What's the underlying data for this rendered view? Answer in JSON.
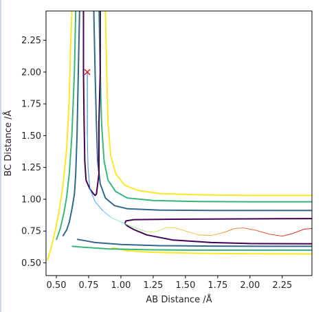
{
  "chart_data": {
    "type": "contour",
    "xlabel": "AB Distance /Å",
    "ylabel": "BC Distance /Å",
    "xlim": [
      0.42,
      2.48
    ],
    "ylim": [
      0.4,
      2.48
    ],
    "xticks": [
      "0.50",
      "0.75",
      "1.00",
      "1.25",
      "1.50",
      "1.75",
      "2.00",
      "2.25"
    ],
    "yticks": [
      "0.50",
      "0.75",
      "1.00",
      "1.25",
      "1.50",
      "1.75",
      "2.00",
      "2.25"
    ],
    "grid": false,
    "legend": "none",
    "contours": [
      {
        "color": "#fde725",
        "points": [
          [
            0.62,
            2.48
          ],
          [
            0.61,
            2.2
          ],
          [
            0.6,
            1.8
          ],
          [
            0.58,
            1.4
          ],
          [
            0.55,
            1.1
          ],
          [
            0.52,
            0.9
          ],
          [
            0.49,
            0.75
          ],
          [
            0.46,
            0.62
          ],
          [
            0.43,
            0.52
          ]
        ],
        "points2": [
          [
            0.88,
            2.48
          ],
          [
            0.89,
            2.0
          ],
          [
            0.9,
            1.6
          ],
          [
            0.92,
            1.35
          ],
          [
            0.96,
            1.2
          ],
          [
            1.03,
            1.11
          ],
          [
            1.13,
            1.07
          ],
          [
            1.3,
            1.045
          ],
          [
            1.6,
            1.035
          ],
          [
            2.0,
            1.03
          ],
          [
            2.48,
            1.03
          ]
        ],
        "points3": [
          [
            0.93,
            0.62
          ],
          [
            1.05,
            0.595
          ],
          [
            1.25,
            0.583
          ],
          [
            1.6,
            0.575
          ],
          [
            2.0,
            0.572
          ],
          [
            2.48,
            0.57
          ]
        ]
      },
      {
        "color": "#35b779",
        "points": [
          [
            0.65,
            2.48
          ],
          [
            0.64,
            2.0
          ],
          [
            0.62,
            1.5
          ],
          [
            0.6,
            1.2
          ],
          [
            0.58,
            1.02
          ],
          [
            0.56,
            0.9
          ],
          [
            0.53,
            0.77
          ],
          [
            0.5,
            0.68
          ]
        ],
        "points2": [
          [
            0.83,
            2.48
          ],
          [
            0.84,
            2.0
          ],
          [
            0.85,
            1.6
          ],
          [
            0.87,
            1.3
          ],
          [
            0.9,
            1.15
          ],
          [
            0.96,
            1.06
          ],
          [
            1.05,
            1.01
          ],
          [
            1.25,
            0.99
          ],
          [
            1.6,
            0.982
          ],
          [
            2.0,
            0.98
          ],
          [
            2.48,
            0.98
          ]
        ],
        "points3": [
          [
            0.62,
            0.63
          ],
          [
            0.75,
            0.62
          ],
          [
            0.9,
            0.61
          ],
          [
            1.2,
            0.603
          ],
          [
            1.6,
            0.6
          ],
          [
            2.0,
            0.6
          ],
          [
            2.48,
            0.6
          ]
        ]
      },
      {
        "color": "#31688e",
        "points": [
          [
            0.68,
            2.48
          ],
          [
            0.67,
            2.0
          ],
          [
            0.66,
            1.5
          ],
          [
            0.65,
            1.2
          ],
          [
            0.64,
            1.04
          ],
          [
            0.62,
            0.92
          ],
          [
            0.6,
            0.82
          ],
          [
            0.58,
            0.76
          ],
          [
            0.55,
            0.71
          ]
        ],
        "points2": [
          [
            0.79,
            2.48
          ],
          [
            0.8,
            2.0
          ],
          [
            0.81,
            1.6
          ],
          [
            0.82,
            1.3
          ],
          [
            0.84,
            1.12
          ],
          [
            0.88,
            1.01
          ],
          [
            0.95,
            0.95
          ],
          [
            1.05,
            0.925
          ],
          [
            1.3,
            0.915
          ],
          [
            1.7,
            0.912
          ],
          [
            2.48,
            0.912
          ]
        ],
        "points3": [
          [
            0.66,
            0.685
          ],
          [
            0.8,
            0.66
          ],
          [
            1.0,
            0.645
          ],
          [
            1.3,
            0.635
          ],
          [
            1.7,
            0.632
          ],
          [
            2.1,
            0.63
          ],
          [
            2.48,
            0.63
          ]
        ]
      },
      {
        "color": "#440154",
        "points": [
          [
            0.71,
            2.48
          ],
          [
            0.71,
            2.0
          ],
          [
            0.715,
            1.6
          ],
          [
            0.72,
            1.3
          ],
          [
            0.73,
            1.15
          ],
          [
            0.76,
            1.08
          ],
          [
            0.79,
            1.04
          ],
          [
            0.8,
            1.03
          ],
          [
            0.81,
            1.04
          ],
          [
            0.83,
            1.2
          ],
          [
            0.83,
            1.6
          ],
          [
            0.84,
            2.0
          ],
          [
            0.84,
            2.48
          ]
        ],
        "points2": [
          [
            2.48,
            0.848
          ],
          [
            2.2,
            0.847
          ],
          [
            1.8,
            0.845
          ],
          [
            1.4,
            0.843
          ],
          [
            1.1,
            0.84
          ],
          [
            1.04,
            0.83
          ],
          [
            1.03,
            0.81
          ],
          [
            1.05,
            0.79
          ],
          [
            1.1,
            0.762
          ],
          [
            1.2,
            0.72
          ],
          [
            1.4,
            0.68
          ],
          [
            1.7,
            0.66
          ],
          [
            2.0,
            0.652
          ],
          [
            2.48,
            0.65
          ]
        ]
      }
    ],
    "trajectory": [
      [
        0.74,
        2.0
      ],
      [
        0.74,
        1.75
      ],
      [
        0.74,
        1.5
      ],
      [
        0.745,
        1.25
      ],
      [
        0.76,
        1.08
      ],
      [
        0.8,
        0.98
      ],
      [
        0.86,
        0.91
      ],
      [
        0.92,
        0.86
      ],
      [
        0.98,
        0.83
      ],
      [
        1.05,
        0.8
      ],
      [
        1.12,
        0.77
      ],
      [
        1.2,
        0.745
      ],
      [
        1.27,
        0.745
      ],
      [
        1.35,
        0.775
      ],
      [
        1.42,
        0.775
      ],
      [
        1.5,
        0.75
      ],
      [
        1.6,
        0.72
      ],
      [
        1.7,
        0.715
      ],
      [
        1.8,
        0.74
      ],
      [
        1.88,
        0.77
      ],
      [
        1.95,
        0.775
      ],
      [
        2.05,
        0.755
      ],
      [
        2.15,
        0.725
      ],
      [
        2.25,
        0.71
      ],
      [
        2.33,
        0.73
      ],
      [
        2.42,
        0.765
      ],
      [
        2.48,
        0.77
      ]
    ],
    "start_marker": {
      "x": 0.74,
      "y": 2.0,
      "symbol": "x",
      "color": "#e31a1c"
    }
  }
}
